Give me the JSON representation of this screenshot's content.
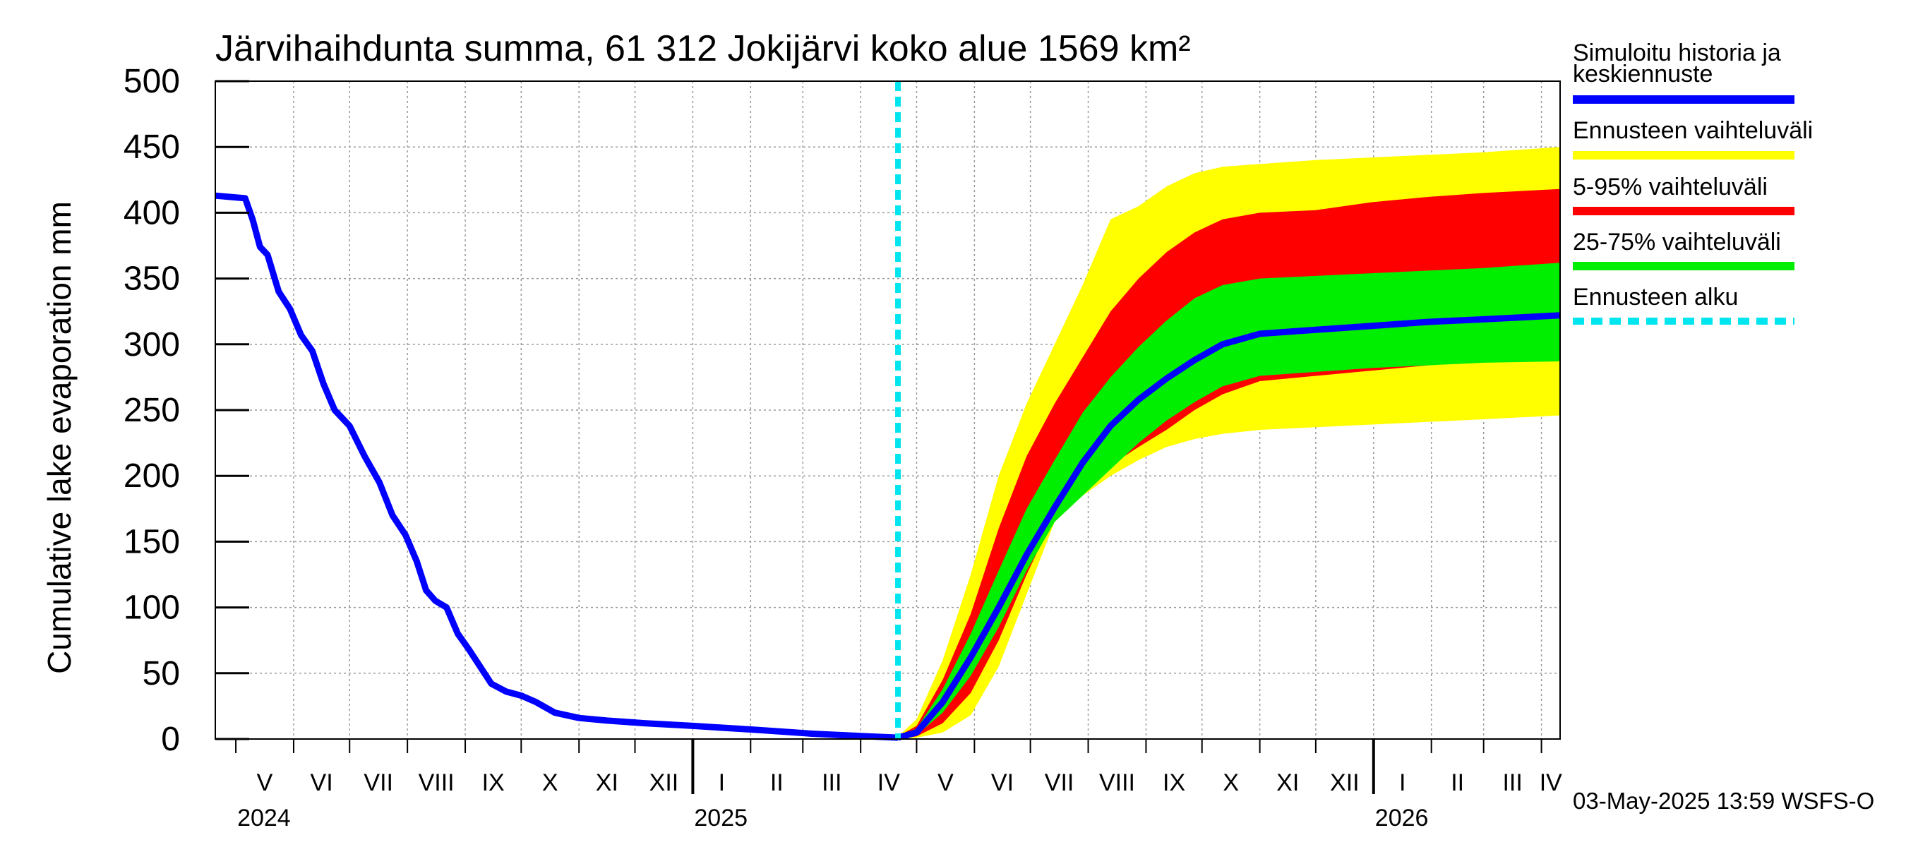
{
  "chart_data": {
    "type": "area",
    "title": "Järvihaihdunta summa, 61 312 Jokijärvi koko alue 1569 km²",
    "ylabel": "Cumulative lake evaporation   mm",
    "xlabel": "",
    "ylim": [
      0,
      500
    ],
    "yticks": [
      0,
      50,
      100,
      150,
      200,
      250,
      300,
      350,
      400,
      450,
      500
    ],
    "x_unit": "days since 2024-04-20",
    "xlim": [
      0,
      721
    ],
    "grid": true,
    "months": [
      {
        "label": "V",
        "start": 11,
        "end": 42
      },
      {
        "label": "VI",
        "start": 42,
        "end": 72
      },
      {
        "label": "VII",
        "start": 72,
        "end": 103
      },
      {
        "label": "VIII",
        "start": 103,
        "end": 134
      },
      {
        "label": "IX",
        "start": 134,
        "end": 164
      },
      {
        "label": "X",
        "start": 164,
        "end": 195
      },
      {
        "label": "XI",
        "start": 195,
        "end": 225
      },
      {
        "label": "XII",
        "start": 225,
        "end": 256
      },
      {
        "label": "I",
        "start": 256,
        "end": 287
      },
      {
        "label": "II",
        "start": 287,
        "end": 315
      },
      {
        "label": "III",
        "start": 315,
        "end": 346
      },
      {
        "label": "IV",
        "start": 346,
        "end": 376
      },
      {
        "label": "V",
        "start": 376,
        "end": 407
      },
      {
        "label": "VI",
        "start": 407,
        "end": 437
      },
      {
        "label": "VII",
        "start": 437,
        "end": 468
      },
      {
        "label": "VIII",
        "start": 468,
        "end": 499
      },
      {
        "label": "IX",
        "start": 499,
        "end": 529
      },
      {
        "label": "X",
        "start": 529,
        "end": 560
      },
      {
        "label": "XI",
        "start": 560,
        "end": 590
      },
      {
        "label": "XII",
        "start": 590,
        "end": 621
      },
      {
        "label": "I",
        "start": 621,
        "end": 652
      },
      {
        "label": "II",
        "start": 652,
        "end": 680
      },
      {
        "label": "III",
        "start": 680,
        "end": 711
      },
      {
        "label": "IV",
        "start": 711,
        "end": 741
      }
    ],
    "years": [
      {
        "label": "2024",
        "x": 11
      },
      {
        "label": "2025",
        "x": 256
      },
      {
        "label": "2026",
        "x": 621
      }
    ],
    "forecast_start": 366,
    "history": {
      "x": [
        0,
        16,
        20,
        24,
        28,
        34,
        40,
        46,
        52,
        58,
        64,
        72,
        80,
        88,
        95,
        102,
        108,
        113,
        118,
        124,
        130,
        136,
        142,
        148,
        156,
        164,
        172,
        182,
        195,
        210,
        230,
        256,
        290,
        320,
        350,
        366
      ],
      "y": [
        413,
        411,
        395,
        374,
        368,
        340,
        327,
        307,
        295,
        270,
        250,
        238,
        215,
        195,
        170,
        155,
        135,
        113,
        105,
        100,
        80,
        68,
        55,
        42,
        36,
        33,
        28,
        20,
        16,
        14,
        12,
        10,
        7,
        4,
        2,
        1
      ]
    },
    "series": [
      {
        "name": "Simuloitu historia ja keskiennuste",
        "color": "#0000ff",
        "x": [
          366,
          376,
          390,
          405,
          420,
          435,
          450,
          465,
          480,
          495,
          510,
          525,
          540,
          560,
          590,
          620,
          650,
          680,
          721
        ],
        "y": [
          1,
          5,
          28,
          62,
          100,
          140,
          176,
          210,
          238,
          258,
          274,
          288,
          300,
          308,
          311,
          314,
          317,
          319,
          322
        ]
      },
      {
        "name": "Ennusteen vaihteluväli",
        "color": "#ffff00",
        "x": [
          366,
          376,
          390,
          405,
          420,
          435,
          450,
          465,
          480,
          495,
          510,
          525,
          540,
          560,
          590,
          620,
          650,
          680,
          721
        ],
        "upper": [
          2,
          15,
          60,
          125,
          200,
          255,
          300,
          345,
          395,
          405,
          420,
          430,
          435,
          437,
          440,
          442,
          444,
          446,
          450
        ],
        "lower": [
          0,
          1,
          5,
          18,
          55,
          110,
          165,
          185,
          200,
          212,
          222,
          228,
          232,
          235,
          237,
          239,
          241,
          243,
          246
        ]
      },
      {
        "name": "5-95% vaihteluväli",
        "color": "#ff0000",
        "x": [
          366,
          376,
          390,
          405,
          420,
          435,
          450,
          465,
          480,
          495,
          510,
          525,
          540,
          560,
          590,
          620,
          650,
          680,
          721
        ],
        "upper": [
          2,
          10,
          45,
          95,
          160,
          215,
          255,
          290,
          325,
          350,
          370,
          385,
          395,
          400,
          402,
          408,
          412,
          415,
          418
        ],
        "lower": [
          0,
          2,
          12,
          35,
          75,
          125,
          170,
          190,
          208,
          222,
          235,
          250,
          262,
          272,
          276,
          280,
          284,
          287,
          290
        ]
      },
      {
        "name": "25-75% vaihteluväli",
        "color": "#00ee00",
        "x": [
          366,
          376,
          390,
          405,
          420,
          435,
          450,
          465,
          480,
          495,
          510,
          525,
          540,
          560,
          590,
          620,
          650,
          680,
          721
        ],
        "upper": [
          2,
          8,
          38,
          80,
          128,
          175,
          212,
          248,
          275,
          298,
          318,
          335,
          345,
          350,
          352,
          354,
          356,
          358,
          362
        ],
        "lower": [
          0,
          3,
          20,
          48,
          85,
          128,
          165,
          185,
          205,
          225,
          242,
          256,
          268,
          276,
          279,
          282,
          284,
          286,
          287
        ]
      },
      {
        "name": "Ennusteen alku",
        "color": "#00e5ee",
        "style": "dashed"
      }
    ],
    "legend_position": "right",
    "timestamp": "03-May-2025 13:59 WSFS-O"
  }
}
